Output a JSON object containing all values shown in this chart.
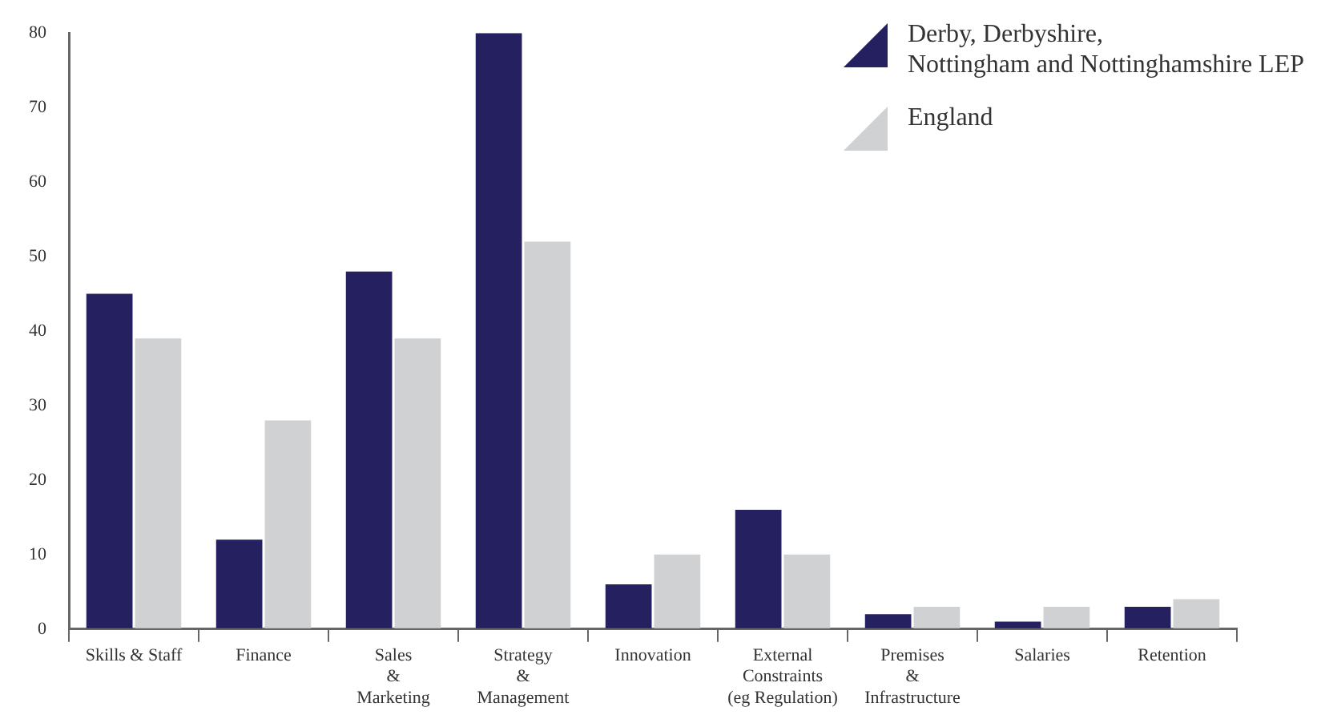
{
  "chart_data": {
    "type": "bar",
    "categories": [
      "Skills & Staff",
      "Finance",
      "Sales\n&\nMarketing",
      "Strategy\n&\nManagement",
      "Innovation",
      "External\nConstraints\n(eg Regulation)",
      "Premises\n&\nInfrastructure",
      "Salaries",
      "Retention"
    ],
    "series": [
      {
        "name": "Derby, Derbyshire,\nNottingham and Nottinghamshire LEP",
        "color": "#252060",
        "values": [
          45,
          12,
          48,
          80,
          6,
          16,
          2,
          1,
          3
        ]
      },
      {
        "name": "England",
        "color": "#d0d1d3",
        "values": [
          39,
          28,
          39,
          52,
          10,
          10,
          3,
          3,
          4
        ]
      }
    ],
    "ylim": [
      0,
      80
    ],
    "yticks": [
      0,
      10,
      20,
      30,
      40,
      50,
      60,
      70,
      80
    ],
    "grid": false,
    "legend": "top right"
  }
}
